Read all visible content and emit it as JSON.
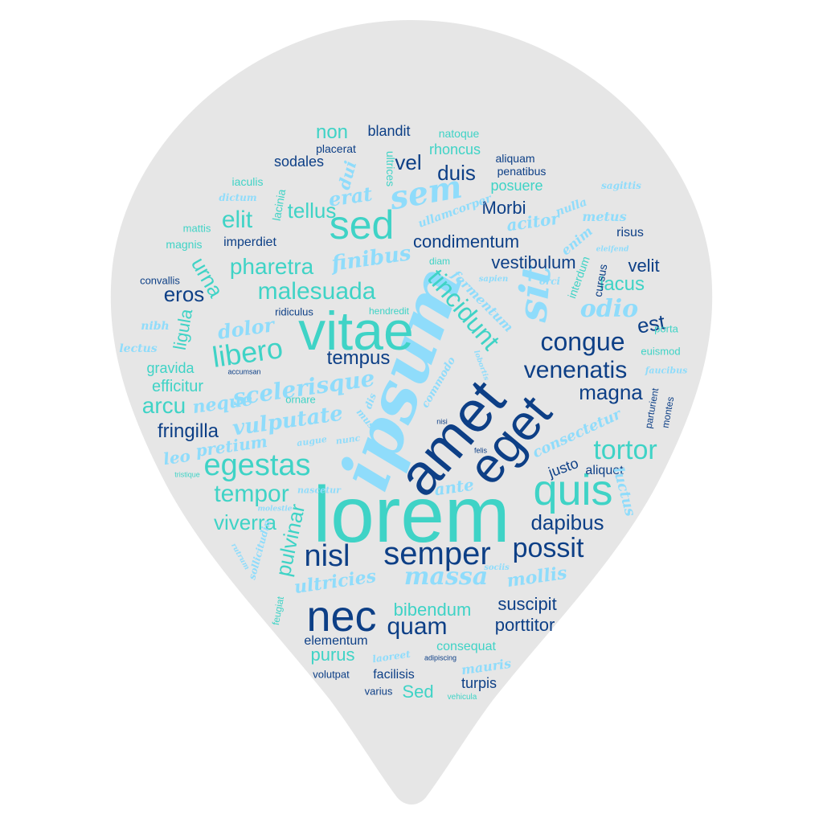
{
  "colors": {
    "pin": "#e6e6e6",
    "dark": "#0d3f86",
    "teal": "#3fd3c6",
    "sky": "#8fdcfb"
  },
  "words": {
    "lorem": "lorem",
    "ipsum": "ipsum",
    "amet": "amet",
    "eget": "eget",
    "vitae": "vitae",
    "quis": "quis",
    "nec": "nec",
    "sed": "sed",
    "semper": "semper",
    "sem": "sem",
    "nisl": "nisl",
    "massa": "massa",
    "egestas": "egestas",
    "tortor": "tortor",
    "sit": "sit",
    "malesuada": "malesuada",
    "libero": "libero",
    "pharetra": "pharetra",
    "tincidunt": "tincidunt",
    "scelerisque": "scelerisque",
    "venenatis": "venenatis",
    "congue": "congue",
    "tempor": "tempor",
    "possit": "possit",
    "quam": "quam",
    "dapibus": "dapibus",
    "viverra": "viverra",
    "pulvinar": "pulvinar",
    "elit": "elit",
    "tellus": "tellus",
    "vel": "vel",
    "duis": "duis",
    "condimentum": "condimentum",
    "finibus": "finibus",
    "vulputate": "vulputate",
    "tempus": "tempus",
    "magna": "magna",
    "est": "est",
    "odio": "odio",
    "non": "non",
    "erat": "erat",
    "urna": "urna",
    "eros": "eros",
    "dolor": "dolor",
    "arcu": "arcu",
    "neque": "neque",
    "vestibulum": "vestibulum",
    "lacus": "lacus",
    "velit": "velit",
    "fringilla": "fringilla",
    "ultricies": "ultricies",
    "mollis": "mollis",
    "bibendum": "bibendum",
    "suscipit": "suscipit",
    "porttitor": "porttitor",
    "purus": "purus",
    "Sed": "Sed",
    "Morbi": "Morbi",
    "ligula": "ligula",
    "efficitur": "efficitur",
    "gravida": "gravida",
    "pretium": "pretium",
    "leo": "leo",
    "ante": "ante",
    "consectetur": "consectetur",
    "justo": "justo",
    "aliquet": "aliquet",
    "luctus": "luctus",
    "rhoncus": "rhoncus",
    "blandit": "blandit",
    "natoque": "natoque",
    "aliquam": "aliquam",
    "penatibus": "penatibus",
    "placerat": "placerat",
    "sodales": "sodales",
    "iaculis": "iaculis",
    "dui": "dui",
    "ultrices": "ultrices",
    "posuere": "posuere",
    "acitor": "acitor",
    "nulla": "nulla",
    "sagittis": "sagittis",
    "metus": "metus",
    "risus": "risus",
    "enim": "enim",
    "cursus": "cursus",
    "interdum": "interdum",
    "eleifend": "eleifend",
    "orci": "orci",
    "sapien": "sapien",
    "fermentum": "fermentum",
    "ullamcorper": "ullamcorper",
    "imperdiet": "imperdiet",
    "magnis": "magnis",
    "mattis": "mattis",
    "lacinia": "lacinia",
    "dictum": "dictum",
    "convallis": "convallis",
    "ridiculus": "ridiculus",
    "hendredit": "hendredit",
    "diam": "diam",
    "nibh": "nibh",
    "lectus": "lectus",
    "accumsan": "accumsan",
    "ornare": "ornare",
    "porta": "porta",
    "euismod": "euismod",
    "faucibus": "faucibus",
    "parturient": "parturient",
    "montes": "montes",
    "commodo": "commodo",
    "lobortis": "lobortis",
    "mus": "mus",
    "dis": "dis",
    "nunc": "nunc",
    "augue": "augue",
    "nisi": "nisi",
    "felis": "felis",
    "tristique": "tristique",
    "nascetur": "nascetur",
    "molestie": "molestie",
    "sollicitudin": "sollicitudin",
    "rutrum": "rutrum",
    "sociis": "sociis",
    "feugiat": "feugiat",
    "elementum": "elementum",
    "consequat": "consequat",
    "mauris": "mauris",
    "laoreet": "laoreet",
    "adipiscing": "adipiscing",
    "volutpat": "volutpat",
    "facilisis": "facilisis",
    "varius": "varius",
    "turpis": "turpis",
    "vehicula": "vehicula"
  }
}
